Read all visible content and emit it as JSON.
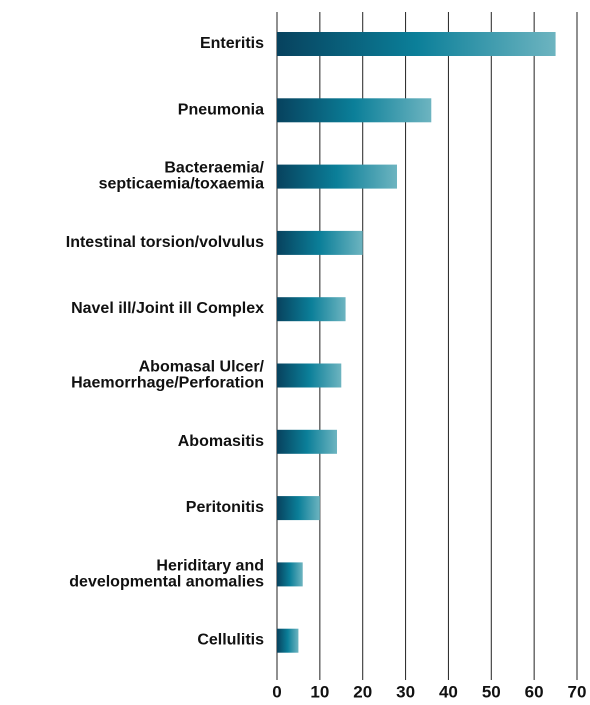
{
  "chart_data": {
    "type": "bar",
    "orientation": "horizontal",
    "categories": [
      "Enteritis",
      "Pneumonia",
      "Bacteraemia/\nsepticaemia/toxaemia",
      "Intestinal torsion/volvulus",
      "Navel ill/Joint ill Complex",
      "Abomasal Ulcer/\nHaemorrhage/Perforation",
      "Abomasitis",
      "Peritonitis",
      "Heriditary and\ndevelopmental anomalies",
      "Cellulitis"
    ],
    "values": [
      65,
      36,
      28,
      20,
      16,
      15,
      14,
      10,
      6,
      5
    ],
    "color": [
      "#07425e",
      "#0b7f99",
      "#6db4c0"
    ],
    "xlim": [
      0,
      70
    ],
    "xticks": [
      0,
      10,
      20,
      30,
      40,
      50,
      60,
      70
    ],
    "grid": true
  }
}
